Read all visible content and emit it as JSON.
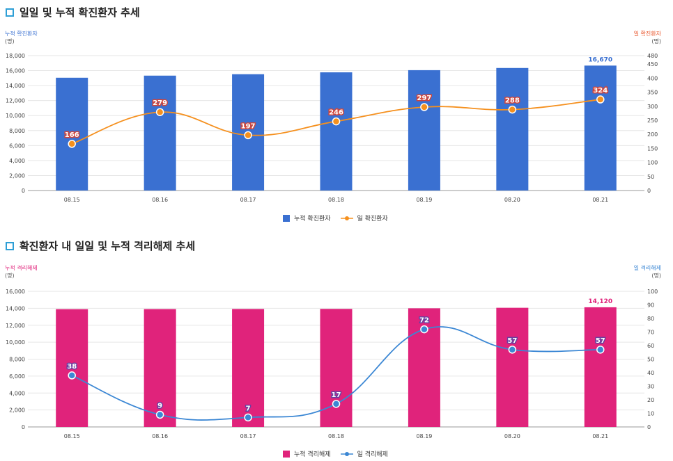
{
  "charts": [
    {
      "title": "일일 및 누적 확진환자 추세",
      "left_axis_label": "누적 확진환자",
      "left_axis_unit": "(명)",
      "right_axis_label": "일 확진환자",
      "right_axis_unit": "(명)",
      "legend_bar": "누적 확진환자",
      "legend_line": "일 확진환자"
    },
    {
      "title": "확진환자 내 일일 및 누적 격리해제 추세",
      "left_axis_label": "누적 격리해제",
      "left_axis_unit": "(명)",
      "right_axis_label": "일 격리해제",
      "right_axis_unit": "(명)",
      "legend_bar": "누적 격리해제",
      "legend_line": "일 격리해제"
    }
  ],
  "chart_data": [
    {
      "type": "bar",
      "title": "일일 및 누적 확진환자 추세",
      "categories": [
        "08.15",
        "08.16",
        "08.17",
        "08.18",
        "08.19",
        "08.20",
        "08.21"
      ],
      "series": [
        {
          "name": "누적 확진환자",
          "type": "bar",
          "axis": "left",
          "color": "#3a70d1",
          "values": [
            15050,
            15330,
            15520,
            15770,
            16060,
            16350,
            16670
          ]
        },
        {
          "name": "일 확진환자",
          "type": "line",
          "axis": "right",
          "color": "#f5901e",
          "values": [
            166,
            279,
            197,
            246,
            297,
            288,
            324
          ]
        }
      ],
      "bar_labels": {
        "6": "16,670"
      },
      "left_axis": {
        "ylim": [
          0,
          18000
        ],
        "ticks": [
          "0",
          "2,000",
          "4,000",
          "6,000",
          "8,000",
          "10,000",
          "12,000",
          "14,000",
          "16,000",
          "18,000"
        ]
      },
      "right_axis": {
        "ylim": [
          0,
          480
        ],
        "ticks": [
          "0",
          "50",
          "100",
          "150",
          "200",
          "250",
          "300",
          "350",
          "400",
          "450",
          "480"
        ]
      },
      "grid": true,
      "legend_position": "bottom"
    },
    {
      "type": "bar",
      "title": "확진환자 내 일일 및 누적 격리해제 추세",
      "categories": [
        "08.15",
        "08.16",
        "08.17",
        "08.18",
        "08.19",
        "08.20",
        "08.21"
      ],
      "series": [
        {
          "name": "누적 격리해제",
          "type": "bar",
          "axis": "left",
          "color": "#e0237b",
          "values": [
            13900,
            13910,
            13920,
            13930,
            14000,
            14060,
            14120
          ]
        },
        {
          "name": "일 격리해제",
          "type": "line",
          "axis": "right",
          "color": "#3b87d4",
          "values": [
            38,
            9,
            7,
            17,
            72,
            57,
            57
          ]
        }
      ],
      "bar_labels": {
        "6": "14,120"
      },
      "left_axis": {
        "ylim": [
          0,
          16000
        ],
        "ticks": [
          "0",
          "2,000",
          "4,000",
          "6,000",
          "8,000",
          "10,000",
          "12,000",
          "14,000",
          "16,000"
        ]
      },
      "right_axis": {
        "ylim": [
          0,
          100
        ],
        "ticks": [
          "0",
          "10",
          "20",
          "30",
          "40",
          "50",
          "60",
          "70",
          "80",
          "90",
          "100"
        ]
      },
      "grid": true,
      "legend_position": "bottom"
    }
  ]
}
